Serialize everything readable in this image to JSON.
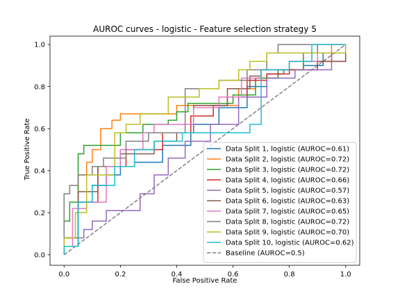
{
  "chart_data": {
    "type": "line",
    "title": "AUROC curves - logistic - Feature selection strategy 5",
    "xlabel": "False Positive Rate",
    "ylabel": "True Positive Rate",
    "xlim": [
      -0.05,
      1.05
    ],
    "ylim": [
      -0.05,
      1.04
    ],
    "xticks": [
      0.0,
      0.2,
      0.4,
      0.6,
      0.8,
      1.0
    ],
    "xtick_labels": [
      "0.0",
      "0.2",
      "0.4",
      "0.6",
      "0.8",
      "1.0"
    ],
    "yticks": [
      0.0,
      0.2,
      0.4,
      0.6,
      0.8,
      1.0
    ],
    "ytick_labels": [
      "0.0",
      "0.2",
      "0.4",
      "0.6",
      "0.8",
      "1.0"
    ],
    "grid": false,
    "legend_position": "lower-right",
    "series": [
      {
        "name": "Data Split 1, logistic (AUROC=0.61)",
        "color": "#1f77b4",
        "x": [
          0.0,
          0.0,
          0.05,
          0.05,
          0.1,
          0.1,
          0.15,
          0.15,
          0.2,
          0.2,
          0.25,
          0.25,
          0.35,
          0.35,
          0.45,
          0.45,
          0.55,
          0.55,
          0.65,
          0.65,
          0.72,
          0.72,
          0.78,
          0.78,
          0.85,
          0.85,
          0.92,
          0.92,
          1.0,
          1.0
        ],
        "y": [
          0.0,
          0.08,
          0.08,
          0.25,
          0.25,
          0.33,
          0.33,
          0.38,
          0.38,
          0.42,
          0.42,
          0.44,
          0.44,
          0.52,
          0.52,
          0.62,
          0.62,
          0.7,
          0.7,
          0.8,
          0.8,
          0.86,
          0.86,
          0.88,
          0.88,
          0.9,
          0.9,
          0.96,
          0.96,
          1.0
        ]
      },
      {
        "name": "Data Split 2, logistic (AUROC=0.72)",
        "color": "#ff7f0e",
        "x": [
          0.0,
          0.0,
          0.05,
          0.05,
          0.08,
          0.08,
          0.1,
          0.1,
          0.13,
          0.13,
          0.17,
          0.17,
          0.2,
          0.2,
          0.24,
          0.24,
          0.4,
          0.4,
          0.62,
          0.62,
          0.68,
          0.68,
          0.76,
          0.76,
          0.85,
          0.85,
          0.95,
          0.95,
          1.0,
          1.0
        ],
        "y": [
          0.0,
          0.08,
          0.08,
          0.38,
          0.38,
          0.44,
          0.44,
          0.5,
          0.5,
          0.6,
          0.6,
          0.64,
          0.64,
          0.67,
          0.67,
          0.67,
          0.67,
          0.71,
          0.71,
          0.79,
          0.79,
          0.84,
          0.84,
          0.88,
          0.88,
          0.92,
          0.92,
          1.0,
          1.0,
          1.0
        ]
      },
      {
        "name": "Data Split 3, logistic (AUROC=0.72)",
        "color": "#2ca02c",
        "x": [
          0.0,
          0.0,
          0.02,
          0.02,
          0.05,
          0.05,
          0.07,
          0.07,
          0.12,
          0.12,
          0.2,
          0.2,
          0.28,
          0.28,
          0.37,
          0.37,
          0.4,
          0.4,
          0.44,
          0.44,
          0.6,
          0.6,
          0.68,
          0.68,
          0.76,
          0.76,
          0.85,
          0.85,
          1.0,
          1.0
        ],
        "y": [
          0.0,
          0.16,
          0.16,
          0.25,
          0.25,
          0.48,
          0.48,
          0.52,
          0.52,
          0.52,
          0.52,
          0.58,
          0.58,
          0.62,
          0.62,
          0.64,
          0.64,
          0.68,
          0.68,
          0.72,
          0.72,
          0.76,
          0.76,
          0.84,
          0.84,
          0.88,
          0.88,
          0.96,
          0.96,
          1.0
        ]
      },
      {
        "name": "Data Split 4, logistic (AUROC=0.66)",
        "color": "#d62728",
        "x": [
          0.0,
          0.0,
          0.05,
          0.05,
          0.12,
          0.12,
          0.22,
          0.22,
          0.35,
          0.35,
          0.45,
          0.45,
          0.53,
          0.53,
          0.58,
          0.58,
          0.65,
          0.65,
          0.72,
          0.72,
          0.8,
          0.8,
          0.9,
          0.9,
          1.0,
          1.0
        ],
        "y": [
          0.0,
          0.08,
          0.08,
          0.25,
          0.25,
          0.42,
          0.42,
          0.5,
          0.5,
          0.58,
          0.58,
          0.66,
          0.66,
          0.71,
          0.71,
          0.75,
          0.75,
          0.83,
          0.83,
          0.86,
          0.86,
          0.88,
          0.88,
          0.92,
          0.92,
          1.0
        ]
      },
      {
        "name": "Data Split 5, logistic (AUROC=0.57)",
        "color": "#9467bd",
        "x": [
          0.0,
          0.0,
          0.07,
          0.07,
          0.1,
          0.1,
          0.15,
          0.15,
          0.27,
          0.27,
          0.32,
          0.32,
          0.37,
          0.37,
          0.43,
          0.43,
          0.52,
          0.52,
          0.62,
          0.62,
          0.72,
          0.72,
          0.82,
          0.82,
          0.95,
          0.95,
          1.0,
          1.0
        ],
        "y": [
          0.0,
          0.08,
          0.08,
          0.12,
          0.12,
          0.16,
          0.16,
          0.21,
          0.21,
          0.29,
          0.29,
          0.38,
          0.38,
          0.46,
          0.46,
          0.54,
          0.54,
          0.62,
          0.62,
          0.75,
          0.75,
          0.84,
          0.84,
          0.88,
          0.88,
          0.96,
          0.96,
          1.0
        ]
      },
      {
        "name": "Data Split 6, logistic (AUROC=0.63)",
        "color": "#8c564b",
        "x": [
          0.0,
          0.0,
          0.05,
          0.05,
          0.12,
          0.12,
          0.2,
          0.2,
          0.32,
          0.32,
          0.4,
          0.4,
          0.46,
          0.46,
          0.58,
          0.58,
          0.66,
          0.66,
          0.7,
          0.7,
          0.8,
          0.8,
          1.0,
          1.0
        ],
        "y": [
          0.0,
          0.04,
          0.04,
          0.3,
          0.3,
          0.42,
          0.42,
          0.48,
          0.48,
          0.54,
          0.54,
          0.58,
          0.58,
          0.71,
          0.71,
          0.79,
          0.79,
          0.85,
          0.85,
          0.88,
          0.88,
          0.92,
          0.92,
          1.0
        ]
      },
      {
        "name": "Data Split 7, logistic (AUROC=0.65)",
        "color": "#e377c2",
        "x": [
          0.0,
          0.0,
          0.03,
          0.03,
          0.08,
          0.08,
          0.15,
          0.15,
          0.2,
          0.2,
          0.28,
          0.28,
          0.32,
          0.32,
          0.46,
          0.46,
          0.55,
          0.55,
          0.63,
          0.63,
          0.7,
          0.7,
          0.8,
          0.8,
          0.9,
          0.9,
          1.0,
          1.0
        ],
        "y": [
          0.0,
          0.04,
          0.04,
          0.22,
          0.22,
          0.25,
          0.25,
          0.42,
          0.42,
          0.5,
          0.5,
          0.58,
          0.58,
          0.62,
          0.62,
          0.7,
          0.7,
          0.75,
          0.75,
          0.84,
          0.84,
          0.88,
          0.88,
          0.92,
          0.92,
          1.0,
          1.0,
          1.0
        ]
      },
      {
        "name": "Data Split 8, logistic (AUROC=0.72)",
        "color": "#7f7f7f",
        "x": [
          0.0,
          0.0,
          0.02,
          0.02,
          0.05,
          0.05,
          0.1,
          0.1,
          0.14,
          0.14,
          0.22,
          0.22,
          0.3,
          0.3,
          0.43,
          0.43,
          0.55,
          0.55,
          0.65,
          0.65,
          0.72,
          0.72,
          0.76,
          0.76,
          0.9,
          0.9,
          1.0,
          1.0
        ],
        "y": [
          0.0,
          0.29,
          0.29,
          0.33,
          0.33,
          0.38,
          0.38,
          0.42,
          0.42,
          0.46,
          0.46,
          0.54,
          0.54,
          0.58,
          0.58,
          0.79,
          0.79,
          0.83,
          0.83,
          0.88,
          0.88,
          0.96,
          0.96,
          1.0,
          1.0,
          0.96,
          0.96,
          1.0
        ]
      },
      {
        "name": "Data Split 9, logistic (AUROC=0.70)",
        "color": "#bcbd22",
        "x": [
          0.0,
          0.0,
          0.04,
          0.04,
          0.08,
          0.08,
          0.18,
          0.18,
          0.22,
          0.22,
          0.27,
          0.27,
          0.37,
          0.37,
          0.48,
          0.48,
          0.55,
          0.55,
          0.62,
          0.62,
          0.66,
          0.66,
          0.72,
          0.72,
          0.85,
          0.85,
          1.0,
          1.0
        ],
        "y": [
          0.0,
          0.08,
          0.08,
          0.2,
          0.2,
          0.38,
          0.38,
          0.58,
          0.58,
          0.62,
          0.62,
          0.67,
          0.67,
          0.75,
          0.75,
          0.79,
          0.79,
          0.83,
          0.83,
          0.88,
          0.88,
          0.92,
          0.92,
          0.96,
          0.96,
          0.96,
          0.96,
          1.0
        ]
      },
      {
        "name": "Data Split 10, logistic (AUROC=0.62)",
        "color": "#17becf",
        "x": [
          0.0,
          0.0,
          0.05,
          0.05,
          0.1,
          0.1,
          0.18,
          0.18,
          0.25,
          0.25,
          0.32,
          0.32,
          0.42,
          0.42,
          0.52,
          0.52,
          0.66,
          0.66,
          0.7,
          0.7,
          0.8,
          0.8,
          0.88,
          0.88,
          0.93,
          0.93,
          1.0,
          1.0
        ],
        "y": [
          0.0,
          0.04,
          0.04,
          0.25,
          0.25,
          0.33,
          0.33,
          0.42,
          0.42,
          0.5,
          0.5,
          0.54,
          0.54,
          0.58,
          0.58,
          0.58,
          0.58,
          0.62,
          0.62,
          0.88,
          0.88,
          0.92,
          0.92,
          1.0,
          1.0,
          1.0,
          1.0,
          1.0
        ]
      }
    ],
    "baseline": {
      "name": "Baseline (AUROC=0.5)",
      "color": "#7f7f7f",
      "x": [
        0.0,
        1.0
      ],
      "y": [
        0.0,
        1.0
      ]
    }
  }
}
